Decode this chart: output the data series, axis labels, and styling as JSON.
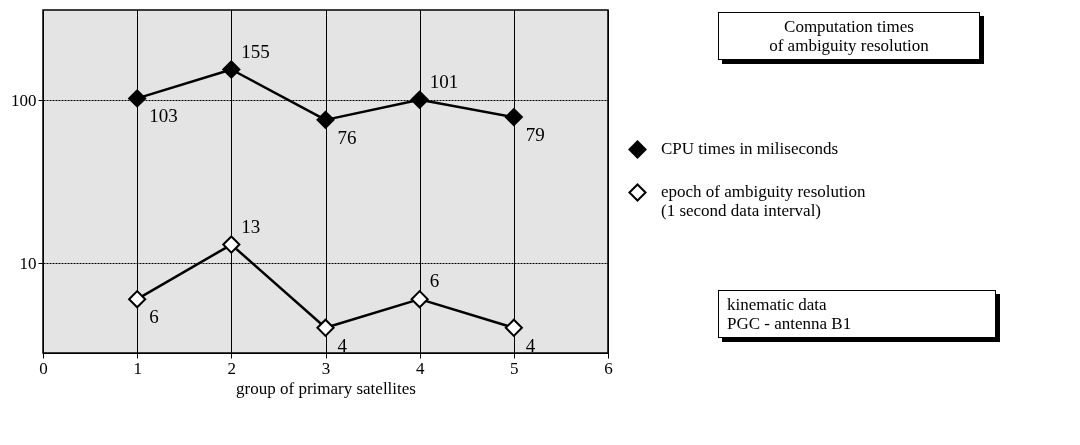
{
  "chart_data": {
    "type": "line",
    "title": "Computation times\nof ambiguity resolution",
    "xlabel": "group of primary satellites",
    "x": [
      1,
      2,
      3,
      4,
      5
    ],
    "series": [
      {
        "name": "CPU times in miliseconds",
        "color": "#000000",
        "values": [
          103,
          155,
          76,
          101,
          79
        ]
      },
      {
        "name": "epoch of ambiguity resolution\n(1 second data interval)",
        "color": "#000000",
        "values": [
          6,
          13,
          4,
          6,
          4
        ]
      }
    ],
    "xlim": [
      0,
      6
    ],
    "xticks": [
      0,
      1,
      2,
      3,
      4,
      5,
      6
    ],
    "ylim": [
      2.8,
      360
    ],
    "yticks": [
      10,
      100
    ],
    "log": true,
    "grid": true,
    "legend": "right",
    "marker": "diamond",
    "data_labels": true,
    "annotations": [
      "kinematic data\nPGC - antenna B1"
    ]
  }
}
